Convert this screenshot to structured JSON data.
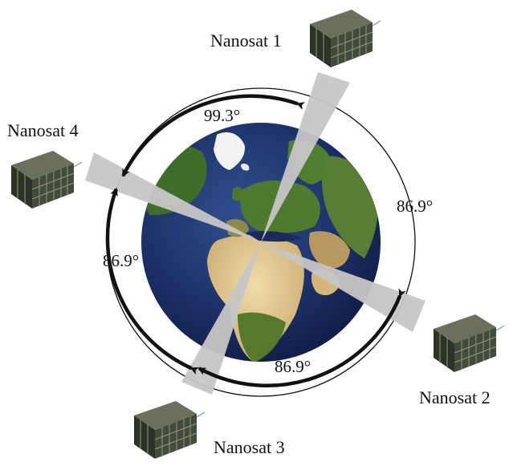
{
  "diagram": {
    "satellites": [
      {
        "id": "sat1",
        "label": "Nanosat 1"
      },
      {
        "id": "sat2",
        "label": "Nanosat 2"
      },
      {
        "id": "sat3",
        "label": "Nanosat 3"
      },
      {
        "id": "sat4",
        "label": "Nanosat 4"
      }
    ],
    "angles": [
      {
        "between": [
          "Nanosat 4",
          "Nanosat 1"
        ],
        "label": "99.3°"
      },
      {
        "between": [
          "Nanosat 1",
          "Nanosat 2"
        ],
        "label": "86.9°"
      },
      {
        "between": [
          "Nanosat 2",
          "Nanosat 3"
        ],
        "label": "86.9°"
      },
      {
        "between": [
          "Nanosat 3",
          "Nanosat 4"
        ],
        "label": "86.9°"
      }
    ],
    "colors": {
      "ocean": "#1c2f63",
      "land_green": "#4b7a2c",
      "desert": "#d8bd82",
      "ice": "#f2f2f2",
      "beam": "#c9c9c9",
      "orbit": "#111111",
      "satellite_body": "#3f4537"
    },
    "icons": [
      "satellite-icon",
      "earth-globe-icon",
      "arrowhead-icon"
    ]
  }
}
